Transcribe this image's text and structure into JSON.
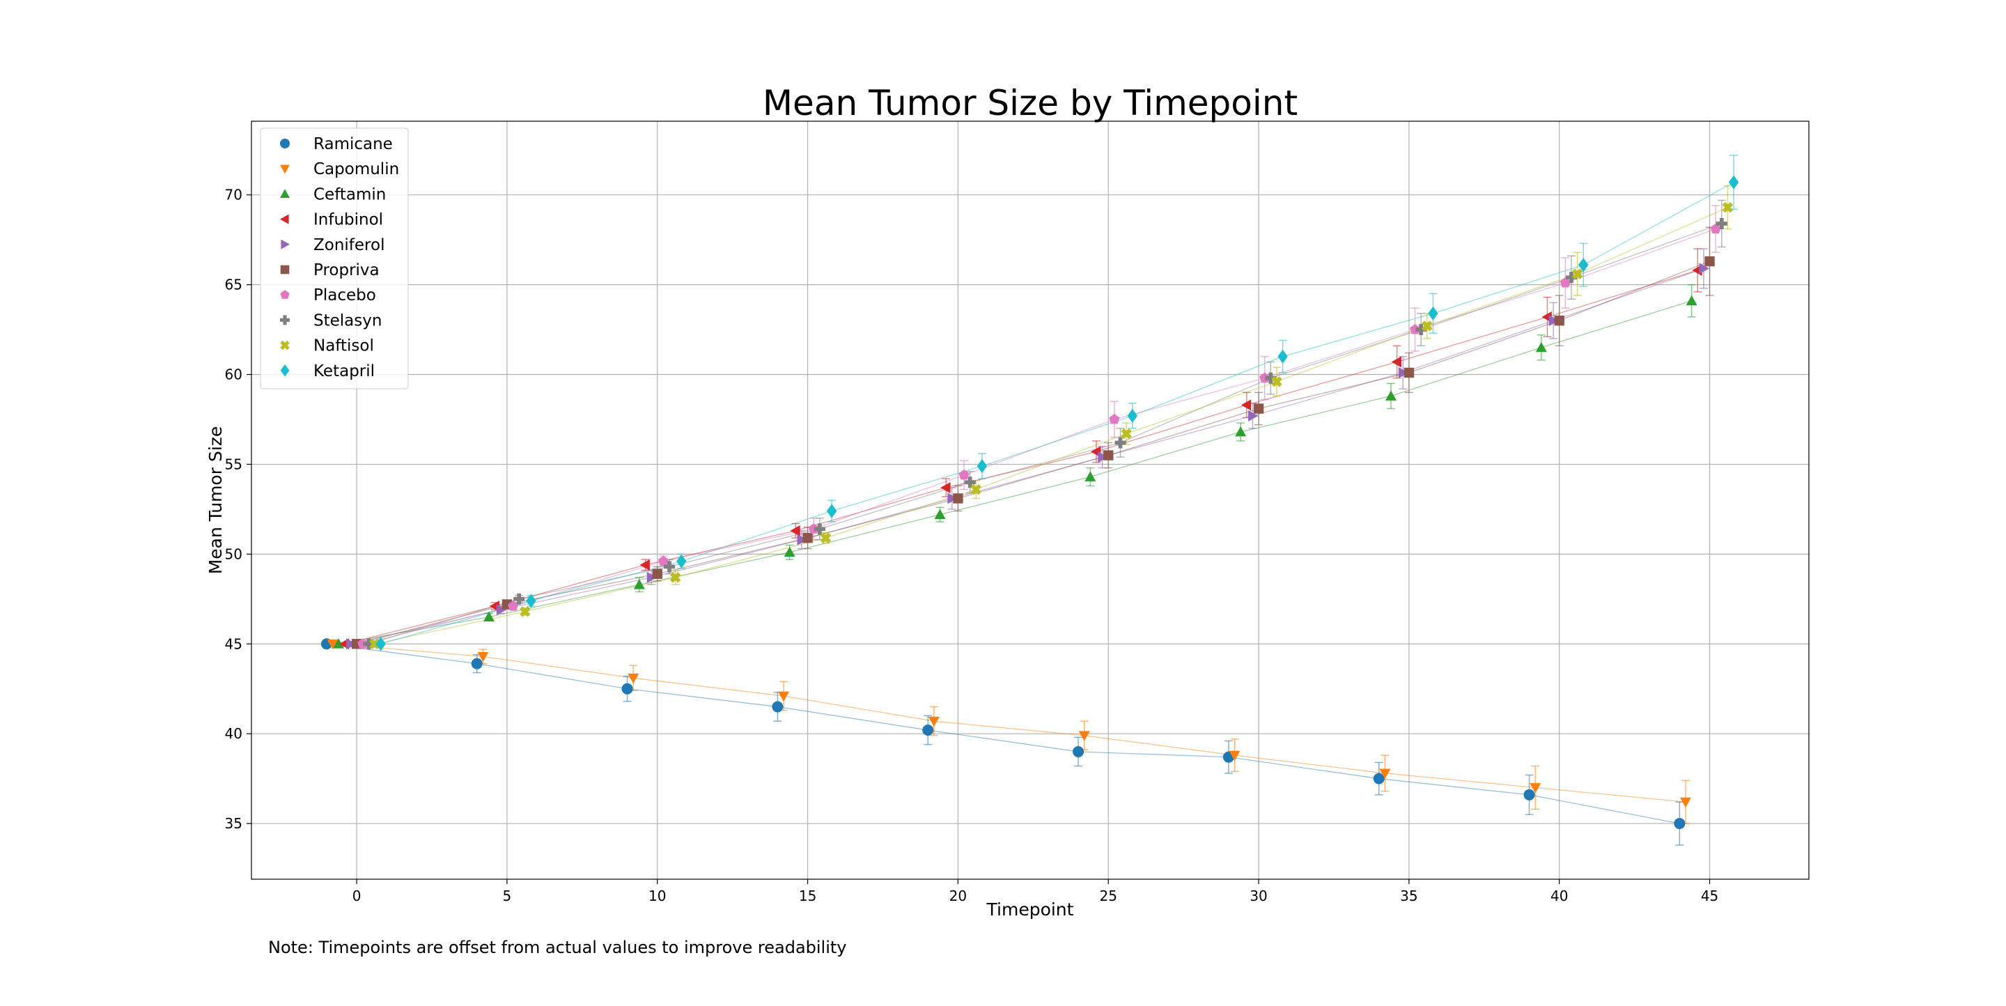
{
  "note": "Note: Timepoints are offset from actual values to improve readability",
  "chart_data": {
    "type": "scatter",
    "title": "Mean Tumor Size by Timepoint",
    "xlabel": "Timepoint",
    "ylabel": "Mean Tumor Size",
    "xlim": [
      -3.5,
      48.3
    ],
    "ylim": [
      31.9,
      74.1
    ],
    "xticks": [
      0,
      5,
      10,
      15,
      20,
      25,
      30,
      35,
      40,
      45
    ],
    "yticks": [
      35,
      40,
      45,
      50,
      55,
      60,
      65,
      70
    ],
    "grid": true,
    "legend_position": "top-left",
    "x": [
      0,
      5,
      10,
      15,
      20,
      25,
      30,
      35,
      40,
      45
    ],
    "series": [
      {
        "name": "Ramicane",
        "color": "#1f77b4",
        "marker": "circle",
        "offset": -1.0,
        "values": [
          45.0,
          43.9,
          42.5,
          41.5,
          40.2,
          39.0,
          38.7,
          37.5,
          36.6,
          35.0
        ],
        "errors": [
          0,
          0.5,
          0.7,
          0.8,
          0.8,
          0.8,
          0.9,
          0.9,
          1.1,
          1.2
        ]
      },
      {
        "name": "Capomulin",
        "color": "#ff7f0e",
        "marker": "triangle-down",
        "offset": -0.8,
        "values": [
          45.0,
          44.3,
          43.1,
          42.1,
          40.7,
          39.9,
          38.8,
          37.8,
          37.0,
          36.2
        ],
        "errors": [
          0,
          0.4,
          0.7,
          0.8,
          0.8,
          0.8,
          0.9,
          1.0,
          1.2,
          1.2
        ]
      },
      {
        "name": "Ceftamin",
        "color": "#2ca02c",
        "marker": "triangle-up",
        "offset": -0.6,
        "values": [
          45.0,
          46.5,
          48.3,
          50.1,
          52.2,
          54.3,
          56.8,
          58.8,
          61.5,
          64.1
        ],
        "errors": [
          0,
          0.2,
          0.4,
          0.4,
          0.4,
          0.5,
          0.5,
          0.7,
          0.7,
          0.9
        ]
      },
      {
        "name": "Infubinol",
        "color": "#d62728",
        "marker": "triangle-left",
        "offset": -0.4,
        "values": [
          45.0,
          47.1,
          49.4,
          51.3,
          53.7,
          55.7,
          58.3,
          60.7,
          63.2,
          65.8
        ],
        "errors": [
          0,
          0.2,
          0.3,
          0.4,
          0.5,
          0.6,
          0.7,
          0.9,
          1.1,
          1.2
        ]
      },
      {
        "name": "Zoniferol",
        "color": "#9467bd",
        "marker": "triangle-right",
        "offset": -0.2,
        "values": [
          45.0,
          46.9,
          48.7,
          50.8,
          53.1,
          55.4,
          57.7,
          60.1,
          63.0,
          65.9
        ],
        "errors": [
          0,
          0.2,
          0.4,
          0.5,
          0.6,
          0.6,
          0.7,
          0.9,
          1.0,
          1.1
        ]
      },
      {
        "name": "Propriva",
        "color": "#8c564b",
        "marker": "square",
        "offset": 0.0,
        "values": [
          45.0,
          47.2,
          48.9,
          50.9,
          53.1,
          55.5,
          58.1,
          60.1,
          63.0,
          66.3
        ],
        "errors": [
          0,
          0.2,
          0.4,
          0.6,
          0.7,
          0.7,
          0.9,
          1.1,
          1.4,
          1.9
        ]
      },
      {
        "name": "Placebo",
        "color": "#e377c2",
        "marker": "pentagon",
        "offset": 0.2,
        "values": [
          45.0,
          47.1,
          49.6,
          51.4,
          54.4,
          57.5,
          59.8,
          62.5,
          65.1,
          68.1
        ],
        "errors": [
          0,
          0.2,
          0.3,
          0.6,
          0.8,
          1.0,
          1.2,
          1.2,
          1.4,
          1.3
        ]
      },
      {
        "name": "Stelasyn",
        "color": "#7f7f7f",
        "marker": "plus",
        "offset": 0.4,
        "values": [
          45.0,
          47.5,
          49.3,
          51.4,
          54.0,
          56.2,
          59.8,
          62.5,
          65.4,
          68.4
        ],
        "errors": [
          0,
          0.2,
          0.4,
          0.6,
          0.6,
          0.8,
          0.9,
          0.9,
          1.2,
          1.3
        ]
      },
      {
        "name": "Naftisol",
        "color": "#bcbd22",
        "marker": "x",
        "offset": 0.6,
        "values": [
          45.0,
          46.8,
          48.7,
          50.9,
          53.6,
          56.7,
          59.6,
          62.7,
          65.6,
          69.3
        ],
        "errors": [
          0,
          0.2,
          0.4,
          0.3,
          0.5,
          0.6,
          0.8,
          0.7,
          1.2,
          1.2
        ]
      },
      {
        "name": "Ketapril",
        "color": "#17becf",
        "marker": "diamond",
        "offset": 0.8,
        "values": [
          45.0,
          47.4,
          49.6,
          52.4,
          54.9,
          57.7,
          61.0,
          63.4,
          66.1,
          70.7
        ],
        "errors": [
          0,
          0.3,
          0.4,
          0.6,
          0.7,
          0.7,
          0.9,
          1.1,
          1.2,
          1.5
        ]
      }
    ]
  }
}
